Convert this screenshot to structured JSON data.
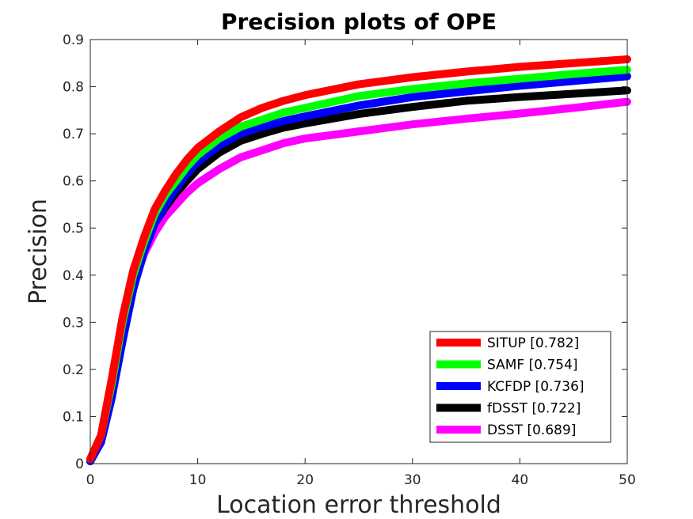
{
  "chart_data": {
    "type": "line",
    "title": "Precision plots of OPE",
    "xlabel": "Location error threshold",
    "ylabel": "Precision",
    "xlim": [
      0,
      50
    ],
    "ylim": [
      0,
      0.9
    ],
    "xticks": [
      "0",
      "10",
      "20",
      "30",
      "40",
      "50"
    ],
    "yticks": [
      "0",
      "0.1",
      "0.2",
      "0.3",
      "0.4",
      "0.5",
      "0.6",
      "0.7",
      "0.8",
      "0.9"
    ],
    "grid": false,
    "legend_position": "bottom-right",
    "x": [
      0,
      1,
      2,
      3,
      4,
      5,
      6,
      7,
      8,
      9,
      10,
      12,
      14,
      16,
      18,
      20,
      25,
      30,
      35,
      40,
      45,
      50
    ],
    "series": [
      {
        "name": "SITUP [0.782]",
        "color": "#ff0000",
        "values": [
          0.01,
          0.06,
          0.18,
          0.31,
          0.41,
          0.48,
          0.54,
          0.58,
          0.615,
          0.645,
          0.67,
          0.705,
          0.735,
          0.755,
          0.77,
          0.782,
          0.805,
          0.82,
          0.832,
          0.842,
          0.85,
          0.858
        ]
      },
      {
        "name": "SAMF [0.754]",
        "color": "#00ff00",
        "values": [
          0.01,
          0.06,
          0.17,
          0.3,
          0.4,
          0.47,
          0.53,
          0.57,
          0.6,
          0.63,
          0.655,
          0.69,
          0.715,
          0.73,
          0.745,
          0.755,
          0.78,
          0.795,
          0.807,
          0.817,
          0.827,
          0.836
        ]
      },
      {
        "name": "KCFDP [0.736]",
        "color": "#0000ff",
        "values": [
          0.005,
          0.045,
          0.14,
          0.26,
          0.37,
          0.45,
          0.51,
          0.55,
          0.585,
          0.615,
          0.64,
          0.675,
          0.7,
          0.715,
          0.727,
          0.737,
          0.76,
          0.778,
          0.79,
          0.802,
          0.812,
          0.822
        ]
      },
      {
        "name": "fDSST [0.722]",
        "color": "#000000",
        "values": [
          0.005,
          0.05,
          0.15,
          0.27,
          0.38,
          0.46,
          0.51,
          0.545,
          0.575,
          0.6,
          0.625,
          0.66,
          0.685,
          0.7,
          0.713,
          0.722,
          0.742,
          0.757,
          0.77,
          0.778,
          0.785,
          0.792
        ]
      },
      {
        "name": "DSST [0.689]",
        "color": "#ff00ff",
        "values": [
          0.005,
          0.05,
          0.155,
          0.275,
          0.375,
          0.445,
          0.49,
          0.525,
          0.55,
          0.575,
          0.595,
          0.625,
          0.65,
          0.665,
          0.68,
          0.69,
          0.705,
          0.72,
          0.732,
          0.743,
          0.755,
          0.768
        ]
      }
    ]
  }
}
